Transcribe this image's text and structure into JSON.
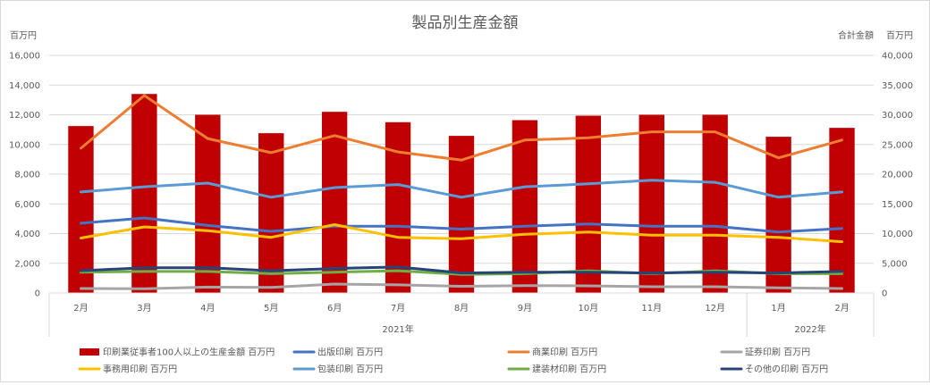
{
  "chart_data": {
    "type": "bar",
    "title": "製品別生産金額",
    "left_axis_unit": "百万円",
    "right_axis_title": "合計金額",
    "right_axis_unit": "百万円",
    "categories": [
      "2月",
      "3月",
      "4月",
      "5月",
      "6月",
      "7月",
      "8月",
      "9月",
      "10月",
      "11月",
      "12月",
      "1月",
      "2月"
    ],
    "year_groups": [
      {
        "label": "2021年",
        "start": 0,
        "end": 10
      },
      {
        "label": "2022年",
        "start": 11,
        "end": 12
      }
    ],
    "ylim_left": [
      0,
      16000
    ],
    "ylim_right": [
      0,
      40000
    ],
    "yticks_left": [
      "0",
      "2,000",
      "4,000",
      "6,000",
      "8,000",
      "10,000",
      "12,000",
      "14,000",
      "16,000"
    ],
    "yticks_right": [
      "0",
      "5,000",
      "10,000",
      "15,000",
      "20,000",
      "25,000",
      "30,000",
      "35,000",
      "40,000"
    ],
    "grid": true,
    "legend_position": "bottom",
    "bar_series": {
      "name": "印刷業従事者100人以上の生産金額 百万円",
      "axis": "right",
      "color": "#c00000",
      "values": [
        28100,
        33500,
        30000,
        26900,
        30500,
        28750,
        26450,
        29100,
        29850,
        30000,
        30000,
        26300,
        27800
      ]
    },
    "line_series": [
      {
        "name": "出版印刷 百万円",
        "color": "#4472c4",
        "values": [
          4700,
          5050,
          4550,
          4150,
          4500,
          4500,
          4300,
          4500,
          4650,
          4500,
          4500,
          4100,
          4350
        ]
      },
      {
        "name": "商業印刷 百万円",
        "color": "#ed7d31",
        "values": [
          9750,
          13300,
          10400,
          9450,
          10600,
          9500,
          8950,
          10300,
          10450,
          10850,
          10850,
          9100,
          10300
        ]
      },
      {
        "name": "証券印刷 百万円",
        "color": "#a5a5a5",
        "values": [
          300,
          280,
          400,
          380,
          600,
          550,
          450,
          500,
          480,
          420,
          420,
          350,
          300
        ]
      },
      {
        "name": "事務用印刷 百万円",
        "color": "#ffc000",
        "values": [
          3700,
          4450,
          4200,
          3750,
          4600,
          3750,
          3650,
          3950,
          4100,
          3900,
          3900,
          3750,
          3450
        ]
      },
      {
        "name": "包装印刷 百万円",
        "color": "#5b9bd5",
        "values": [
          6800,
          7150,
          7400,
          6450,
          7100,
          7300,
          6450,
          7150,
          7350,
          7600,
          7450,
          6450,
          6800
        ]
      },
      {
        "name": "建装材印刷 百万円",
        "color": "#70ad47",
        "values": [
          1400,
          1450,
          1450,
          1300,
          1400,
          1500,
          1250,
          1300,
          1500,
          1300,
          1500,
          1300,
          1300
        ]
      },
      {
        "name": "その他の印刷 百万円",
        "color": "#264478",
        "values": [
          1500,
          1700,
          1700,
          1500,
          1650,
          1750,
          1350,
          1400,
          1400,
          1350,
          1400,
          1350,
          1450
        ]
      }
    ]
  }
}
